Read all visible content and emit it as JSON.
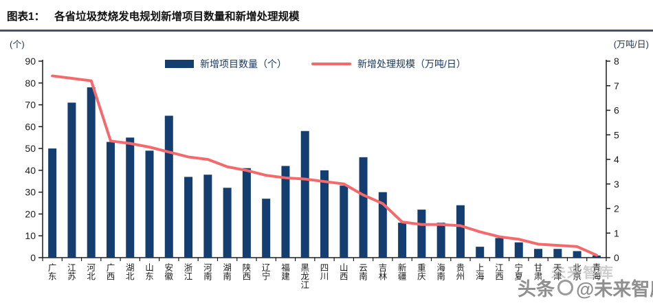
{
  "header": {
    "figure_label": "图表1：",
    "title": "各省垃圾焚烧发电规划新增项目数量和新增处理规模"
  },
  "units": {
    "left": "(个)",
    "right": "(万吨/日)"
  },
  "legend": {
    "bar_label": "新增项目数量（个）",
    "line_label": "新增处理规模（万吨/日）"
  },
  "colors": {
    "bar": "#153e70",
    "line": "#f4696b",
    "axis": "#1a1a1a",
    "legend_text": "#17375e",
    "title_rule": "#44546a",
    "watermark": "#8f8f8f"
  },
  "watermark": {
    "ghost": "未来智库",
    "prefix": "头条",
    "suffix": "@未来智库"
  },
  "chart_data": {
    "type": "bar",
    "title": "各省垃圾焚烧发电规划新增项目数量和新增处理规模",
    "categories": [
      "广东",
      "江苏",
      "河北",
      "广西",
      "湖北",
      "山东",
      "安徽",
      "浙江",
      "河南",
      "湖南",
      "陕西",
      "辽宁",
      "福建",
      "黑龙江",
      "四川",
      "山西",
      "云南",
      "吉林",
      "新疆",
      "重庆",
      "海南",
      "贵州",
      "上海",
      "江西",
      "宁夏",
      "甘肃",
      "天津",
      "北京",
      "青海"
    ],
    "series": [
      {
        "name": "新增项目数量（个）",
        "type": "bar",
        "axis": "left",
        "color": "#153e70",
        "values": [
          50,
          71,
          78,
          53,
          55,
          49,
          65,
          37,
          38,
          32,
          41,
          27,
          42,
          58,
          40,
          33,
          46,
          30,
          16,
          22,
          16,
          24,
          5,
          9,
          7,
          4,
          4,
          3,
          1
        ]
      },
      {
        "name": "新增处理规模（万吨/日）",
        "type": "line",
        "axis": "right",
        "color": "#f4696b",
        "values": [
          7.4,
          7.3,
          7.2,
          4.75,
          4.65,
          4.5,
          4.3,
          4.1,
          4.0,
          3.7,
          3.55,
          3.35,
          3.25,
          3.2,
          3.1,
          3.0,
          2.55,
          2.2,
          1.45,
          1.35,
          1.35,
          1.3,
          1.05,
          0.85,
          0.75,
          0.55,
          0.5,
          0.45,
          0.1
        ]
      }
    ],
    "left_axis": {
      "label": "(个)",
      "min": 0,
      "max": 90,
      "step": 10
    },
    "right_axis": {
      "label": "(万吨/日)",
      "min": 0,
      "max": 8,
      "step": 1
    },
    "grid": false,
    "legend_position": "top-center",
    "xlabel": "",
    "ylabel": "(个)"
  }
}
